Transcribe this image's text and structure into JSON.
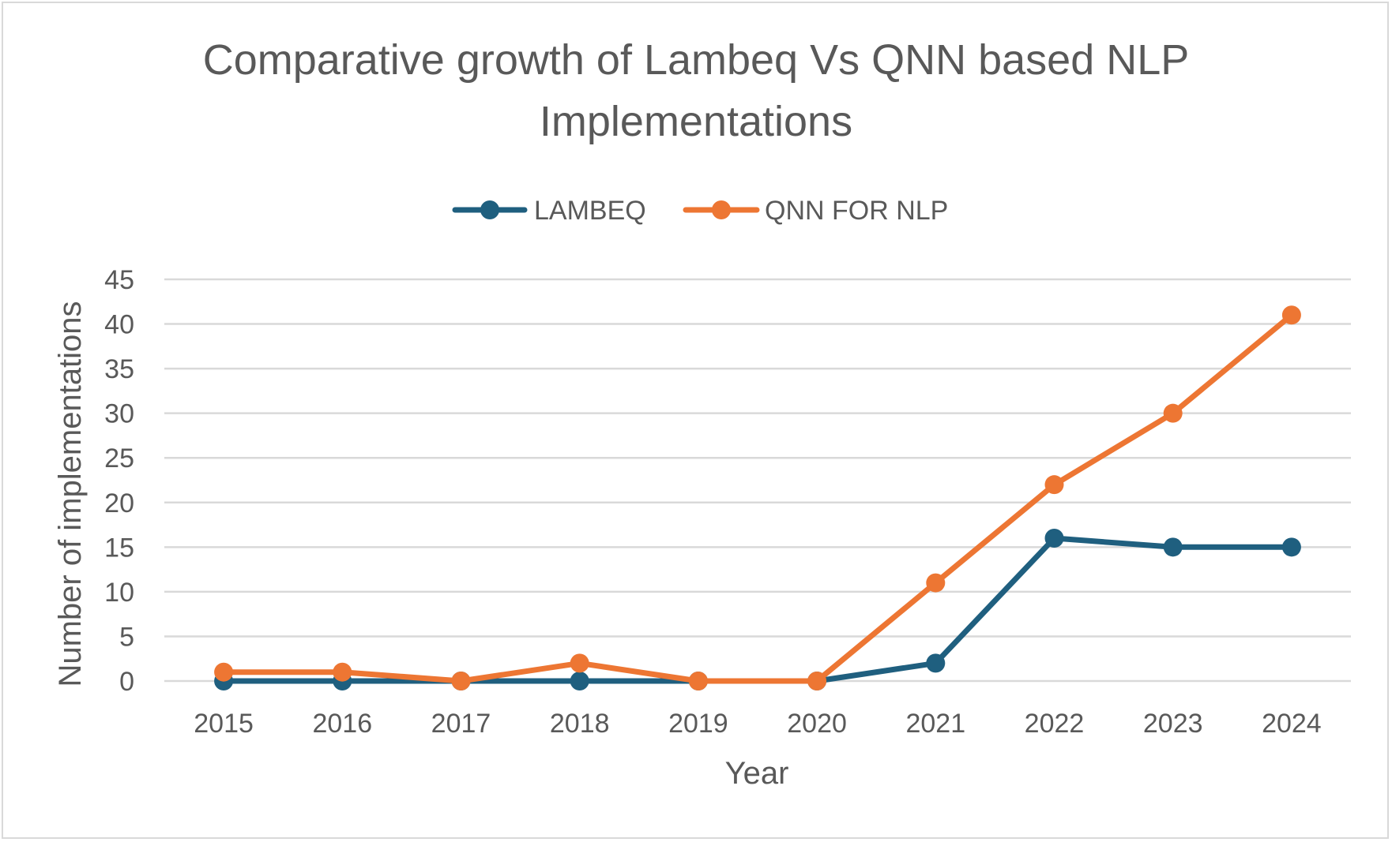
{
  "chart_data": {
    "type": "line",
    "title_lines": [
      "Comparative growth of Lambeq  Vs QNN based NLP",
      "Implementations"
    ],
    "xlabel": "Year",
    "ylabel": "Number of implementations",
    "categories": [
      "2015",
      "2016",
      "2017",
      "2018",
      "2019",
      "2020",
      "2021",
      "2022",
      "2023",
      "2024"
    ],
    "ylim": [
      0,
      45
    ],
    "yticks": [
      0,
      5,
      10,
      15,
      20,
      25,
      30,
      35,
      40,
      45
    ],
    "grid": true,
    "legend_position": "top",
    "series": [
      {
        "name": "LAMBEQ",
        "color": "#1f5f7f",
        "values": [
          0,
          0,
          0,
          0,
          0,
          0,
          2,
          16,
          15,
          15
        ]
      },
      {
        "name": "QNN FOR NLP",
        "color": "#ed7633",
        "values": [
          1,
          1,
          0,
          2,
          0,
          0,
          11,
          22,
          30,
          41
        ]
      }
    ]
  }
}
